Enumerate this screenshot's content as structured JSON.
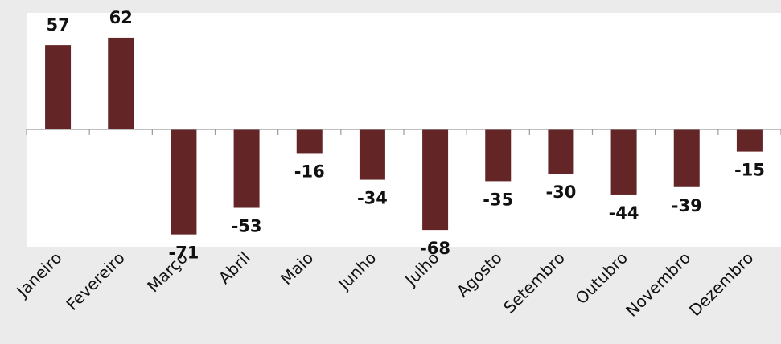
{
  "chart_data": {
    "type": "bar",
    "categories": [
      "Janeiro",
      "Fevereiro",
      "Março",
      "Abril",
      "Maio",
      "Junho",
      "Julho",
      "Agosto",
      "Setembro",
      "Outubro",
      "Novembro",
      "Dezembro"
    ],
    "values": [
      57,
      62,
      -71,
      -53,
      -16,
      -34,
      -68,
      -35,
      -30,
      -44,
      -39,
      -15
    ],
    "data_labels": [
      "57",
      "62",
      "-71",
      "-53",
      "-16",
      "-34",
      "-68",
      "-35",
      "-30",
      "-44",
      "-39",
      "-15"
    ],
    "title": "",
    "xlabel": "",
    "ylabel": "",
    "ylim": [
      -80,
      80
    ],
    "grid": false,
    "legend": "none",
    "bar_color": "#632526",
    "plot_background": "#ffffff",
    "page_background": "#ebebeb"
  }
}
